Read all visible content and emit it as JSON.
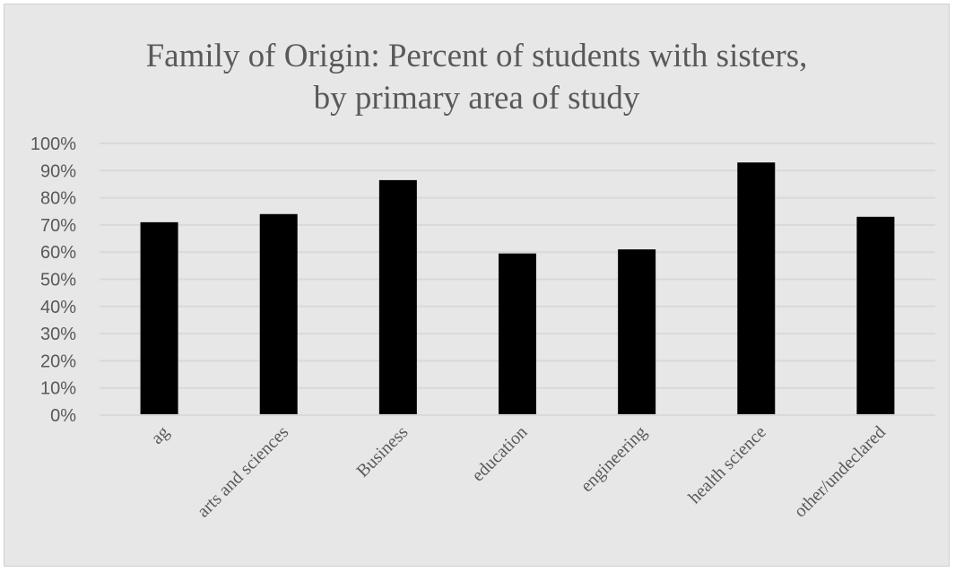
{
  "chart_data": {
    "type": "bar",
    "title": "Family of Origin: Percent of students with sisters, by primary area of study",
    "title_lines": [
      "Family of Origin: Percent of students with sisters,",
      "by primary area of study"
    ],
    "categories": [
      "ag",
      "arts and sciences",
      "Business",
      "education",
      "engineering",
      "health science",
      "other/undeclared"
    ],
    "values": [
      71,
      74,
      86.5,
      59.5,
      61,
      93,
      73
    ],
    "ylim": [
      0,
      100
    ],
    "yticks": [
      0,
      10,
      20,
      30,
      40,
      50,
      60,
      70,
      80,
      90,
      100
    ],
    "ytick_labels": [
      "0%",
      "10%",
      "20%",
      "30%",
      "40%",
      "50%",
      "60%",
      "70%",
      "80%",
      "90%",
      "100%"
    ],
    "xlabel": "",
    "ylabel": "",
    "grid": true,
    "legend": "none",
    "colors": {
      "bar": "#000000",
      "grid": "#d9d9d9",
      "text": "#595959",
      "background": "#e7e7e7"
    }
  }
}
